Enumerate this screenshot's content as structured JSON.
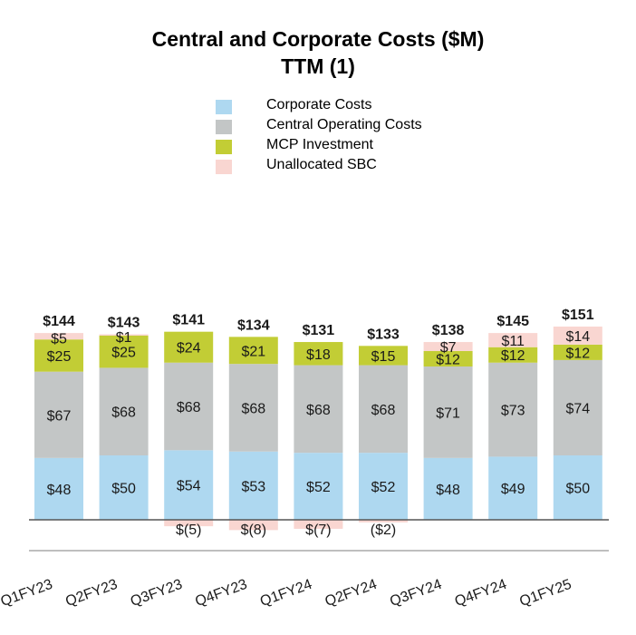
{
  "title": "Central and Corporate Costs ($M)",
  "subtitle": "TTM (1)",
  "legend": [
    {
      "label": "Corporate Costs",
      "color": "#aed8f0"
    },
    {
      "label": "Central Operating Costs",
      "color": "#c3c6c6"
    },
    {
      "label": "MCP Investment",
      "color": "#c2cd35"
    },
    {
      "label": "Unallocated SBC",
      "color": "#f9d6d1"
    }
  ],
  "chart_data": {
    "type": "bar",
    "stacked": true,
    "title": "Central and Corporate Costs ($M)",
    "subtitle": "TTM (1)",
    "categories": [
      "Q1FY23",
      "Q2FY23",
      "Q3FY23",
      "Q4FY23",
      "Q1FY24",
      "Q2FY24",
      "Q3FY24",
      "Q4FY24",
      "Q1FY25"
    ],
    "series": [
      {
        "name": "Corporate Costs",
        "color": "#aed8f0",
        "values": [
          48,
          50,
          54,
          53,
          52,
          52,
          48,
          49,
          50
        ],
        "labels": [
          "$48",
          "$50",
          "$54",
          "$53",
          "$52",
          "$52",
          "$48",
          "$49",
          "$50"
        ]
      },
      {
        "name": "Central Operating Costs",
        "color": "#c3c6c6",
        "values": [
          67,
          68,
          68,
          68,
          68,
          68,
          71,
          73,
          74
        ],
        "labels": [
          "$67",
          "$68",
          "$68",
          "$68",
          "$68",
          "$68",
          "$71",
          "$73",
          "$74"
        ]
      },
      {
        "name": "MCP Investment",
        "color": "#c2cd35",
        "values": [
          25,
          25,
          24,
          21,
          18,
          15,
          12,
          12,
          12
        ],
        "labels": [
          "$25",
          "$25",
          "$24",
          "$21",
          "$18",
          "$15",
          "$12",
          "$12",
          "$12"
        ]
      },
      {
        "name": "Unallocated SBC",
        "color": "#f9d6d1",
        "values": [
          5,
          1,
          -5,
          -8,
          -7,
          -2,
          7,
          11,
          14
        ],
        "labels": [
          "$5",
          "$1",
          "$(5)",
          "$(8)",
          "$(7)",
          "($2)",
          "$7",
          "$11",
          "$14"
        ]
      }
    ],
    "totals": [
      144,
      143,
      141,
      134,
      131,
      133,
      138,
      145,
      151
    ],
    "total_labels": [
      "$144",
      "$143",
      "$141",
      "$134",
      "$131",
      "$133",
      "$138",
      "$145",
      "$151"
    ],
    "ylim": [
      -10,
      160
    ],
    "grid": false,
    "legend_position": "top-center"
  }
}
